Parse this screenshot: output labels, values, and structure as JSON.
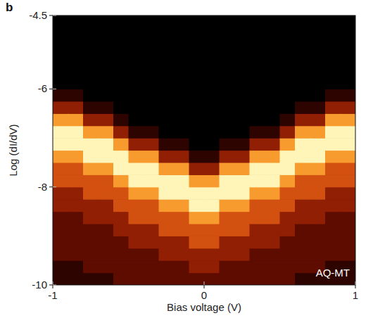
{
  "chart_data": {
    "type": "heatmap",
    "panel_label": "b",
    "annotation": "AQ-MT",
    "xlabel": "Bias voltage (V)",
    "ylabel": "Log (dI/dV)",
    "xlim": [
      -1,
      1
    ],
    "ylim": [
      -10,
      -4.5
    ],
    "xticks": [
      -1,
      0,
      1
    ],
    "yticks": [
      -10,
      -8,
      -6,
      -4.5
    ],
    "x_bins": [
      -1,
      -0.9,
      -0.8,
      -0.7,
      -0.6,
      -0.5,
      -0.4,
      -0.3,
      -0.2,
      -0.1,
      0,
      0.1,
      0.2,
      0.3,
      0.4,
      0.5,
      0.6,
      0.7,
      0.8,
      0.9,
      1
    ],
    "y_bins": [
      -10,
      -9.75,
      -9.5,
      -9.25,
      -9,
      -8.75,
      -8.5,
      -8.25,
      -8,
      -7.75,
      -7.5,
      -7.25,
      -7,
      -6.75,
      -6.5,
      -6.25,
      -6,
      -5.75,
      -5.5,
      -5.25,
      -5,
      -4.75,
      -4.5
    ],
    "values": [
      [
        1,
        1,
        2,
        2,
        2,
        2,
        3,
        3,
        5,
        5,
        7,
        10,
        10,
        7,
        3,
        1,
        0,
        0,
        0,
        0,
        0,
        0
      ],
      [
        1,
        1,
        2,
        2,
        2,
        2,
        3,
        3,
        5,
        5,
        7,
        10,
        10,
        7,
        3,
        1,
        0,
        0,
        0,
        0,
        0,
        0
      ],
      [
        1,
        2,
        2,
        2,
        2,
        3,
        3,
        5,
        5,
        7,
        10,
        10,
        7,
        3,
        1,
        0,
        0,
        0,
        0,
        0,
        0,
        0
      ],
      [
        1,
        2,
        2,
        2,
        2,
        3,
        3,
        5,
        5,
        7,
        10,
        10,
        7,
        3,
        1,
        0,
        0,
        0,
        0,
        0,
        0,
        0
      ],
      [
        2,
        2,
        2,
        2,
        3,
        3,
        5,
        5,
        7,
        10,
        10,
        7,
        3,
        1,
        0,
        0,
        0,
        0,
        0,
        0,
        0,
        0
      ],
      [
        2,
        2,
        2,
        3,
        3,
        5,
        5,
        7,
        10,
        10,
        7,
        3,
        1,
        0,
        0,
        0,
        0,
        0,
        0,
        0,
        0,
        0
      ],
      [
        2,
        2,
        2,
        3,
        3,
        5,
        5,
        7,
        10,
        10,
        7,
        3,
        1,
        0,
        0,
        0,
        0,
        0,
        0,
        0,
        0,
        0
      ],
      [
        2,
        2,
        3,
        3,
        5,
        5,
        7,
        10,
        10,
        7,
        3,
        1,
        0,
        0,
        0,
        0,
        0,
        0,
        0,
        0,
        0,
        0
      ],
      [
        2,
        2,
        3,
        3,
        5,
        5,
        7,
        10,
        10,
        7,
        3,
        1,
        0,
        0,
        0,
        0,
        0,
        0,
        0,
        0,
        0,
        0
      ],
      [
        2,
        3,
        3,
        5,
        5,
        7,
        10,
        10,
        7,
        3,
        1,
        0,
        0,
        0,
        0,
        0,
        0,
        0,
        0,
        0,
        0,
        0
      ],
      [
        2,
        3,
        3,
        5,
        5,
        7,
        10,
        10,
        7,
        3,
        1,
        0,
        0,
        0,
        0,
        0,
        0,
        0,
        0,
        0,
        0,
        0
      ],
      [
        2,
        2,
        3,
        3,
        5,
        5,
        7,
        10,
        10,
        7,
        3,
        1,
        0,
        0,
        0,
        0,
        0,
        0,
        0,
        0,
        0,
        0
      ],
      [
        2,
        2,
        3,
        3,
        5,
        5,
        7,
        10,
        10,
        7,
        3,
        1,
        0,
        0,
        0,
        0,
        0,
        0,
        0,
        0,
        0,
        0
      ],
      [
        2,
        2,
        2,
        3,
        3,
        5,
        5,
        7,
        10,
        10,
        7,
        3,
        1,
        0,
        0,
        0,
        0,
        0,
        0,
        0,
        0,
        0
      ],
      [
        2,
        2,
        2,
        3,
        3,
        5,
        5,
        7,
        10,
        10,
        7,
        3,
        1,
        0,
        0,
        0,
        0,
        0,
        0,
        0,
        0,
        0
      ],
      [
        2,
        2,
        2,
        2,
        3,
        3,
        5,
        5,
        7,
        10,
        10,
        7,
        3,
        1,
        0,
        0,
        0,
        0,
        0,
        0,
        0,
        0
      ],
      [
        1,
        2,
        2,
        2,
        2,
        3,
        3,
        5,
        5,
        7,
        10,
        10,
        7,
        3,
        1,
        0,
        0,
        0,
        0,
        0,
        0,
        0
      ],
      [
        1,
        2,
        2,
        2,
        2,
        3,
        3,
        5,
        5,
        7,
        10,
        10,
        7,
        3,
        1,
        0,
        0,
        0,
        0,
        0,
        0,
        0
      ],
      [
        1,
        1,
        2,
        2,
        2,
        2,
        3,
        3,
        5,
        5,
        7,
        10,
        10,
        7,
        3,
        1,
        0,
        0,
        0,
        0,
        0,
        0
      ],
      [
        1,
        1,
        2,
        2,
        2,
        2,
        3,
        3,
        5,
        5,
        7,
        10,
        10,
        7,
        3,
        1,
        0,
        0,
        0,
        0,
        0,
        0
      ]
    ]
  }
}
